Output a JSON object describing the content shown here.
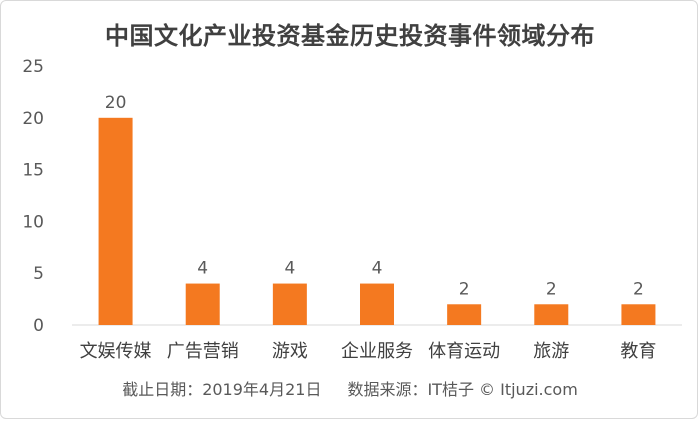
{
  "chart_data": {
    "type": "bar",
    "title": "中国文化产业投资基金历史投资事件领域分布",
    "categories": [
      "文娱传媒",
      "广告营销",
      "游戏",
      "企业服务",
      "体育运动",
      "旅游",
      "教育"
    ],
    "values": [
      20,
      4,
      4,
      4,
      2,
      2,
      2
    ],
    "data_labels": [
      "20",
      "4",
      "4",
      "4",
      "2",
      "2",
      "2"
    ],
    "ylim": [
      0,
      25
    ],
    "yticks": [
      0,
      5,
      10,
      15,
      20,
      25
    ],
    "xlabel": "",
    "ylabel": "",
    "grid": false,
    "legend": "none",
    "bar_color": "#f47920",
    "axis_color": "#d9d9d9",
    "label_color": "#595959"
  },
  "footer": {
    "date_text": "截止日期：2019年4月21日",
    "source_text": "数据来源：IT桔子 © Itjuzi.com"
  }
}
